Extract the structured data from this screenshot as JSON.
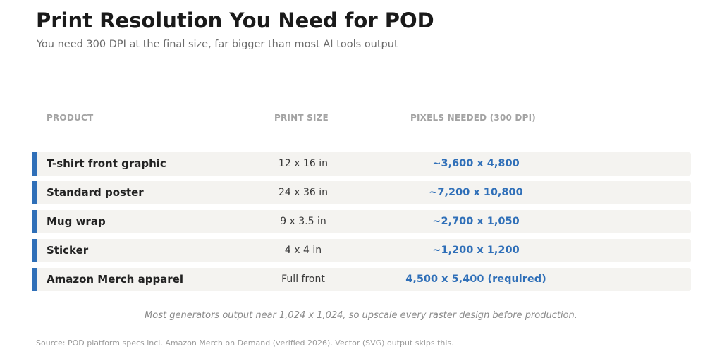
{
  "title": "Print Resolution You Need for POD",
  "subtitle": "You need 300 DPI at the final size, far bigger than most AI tools output",
  "table": {
    "headers": {
      "product": "PRODUCT",
      "print_size": "PRINT SIZE",
      "pixels_needed": "PIXELS NEEDED (300 DPI)"
    },
    "rows": [
      {
        "product": "T-shirt front graphic",
        "print_size": "12 x 16 in",
        "pixels_needed": "~3,600 x 4,800"
      },
      {
        "product": "Standard poster",
        "print_size": "24 x 36 in",
        "pixels_needed": "~7,200 x 10,800"
      },
      {
        "product": "Mug wrap",
        "print_size": "9 x 3.5 in",
        "pixels_needed": "~2,700 x 1,050"
      },
      {
        "product": "Sticker",
        "print_size": "4 x 4 in",
        "pixels_needed": "~1,200 x 1,200"
      },
      {
        "product": "Amazon Merch apparel",
        "print_size": "Full front",
        "pixels_needed": "4,500 x 5,400 (required)"
      }
    ]
  },
  "note": "Most generators output near 1,024 x 1,024, so upscale every raster design before production.",
  "source": "Source: POD platform specs incl. Amazon Merch on Demand (verified 2026). Vector (SVG) output skips this.",
  "colors": {
    "accent": "#2f6fb8",
    "row_background": "#f4f3f0",
    "header_text": "#a3a3a3"
  }
}
